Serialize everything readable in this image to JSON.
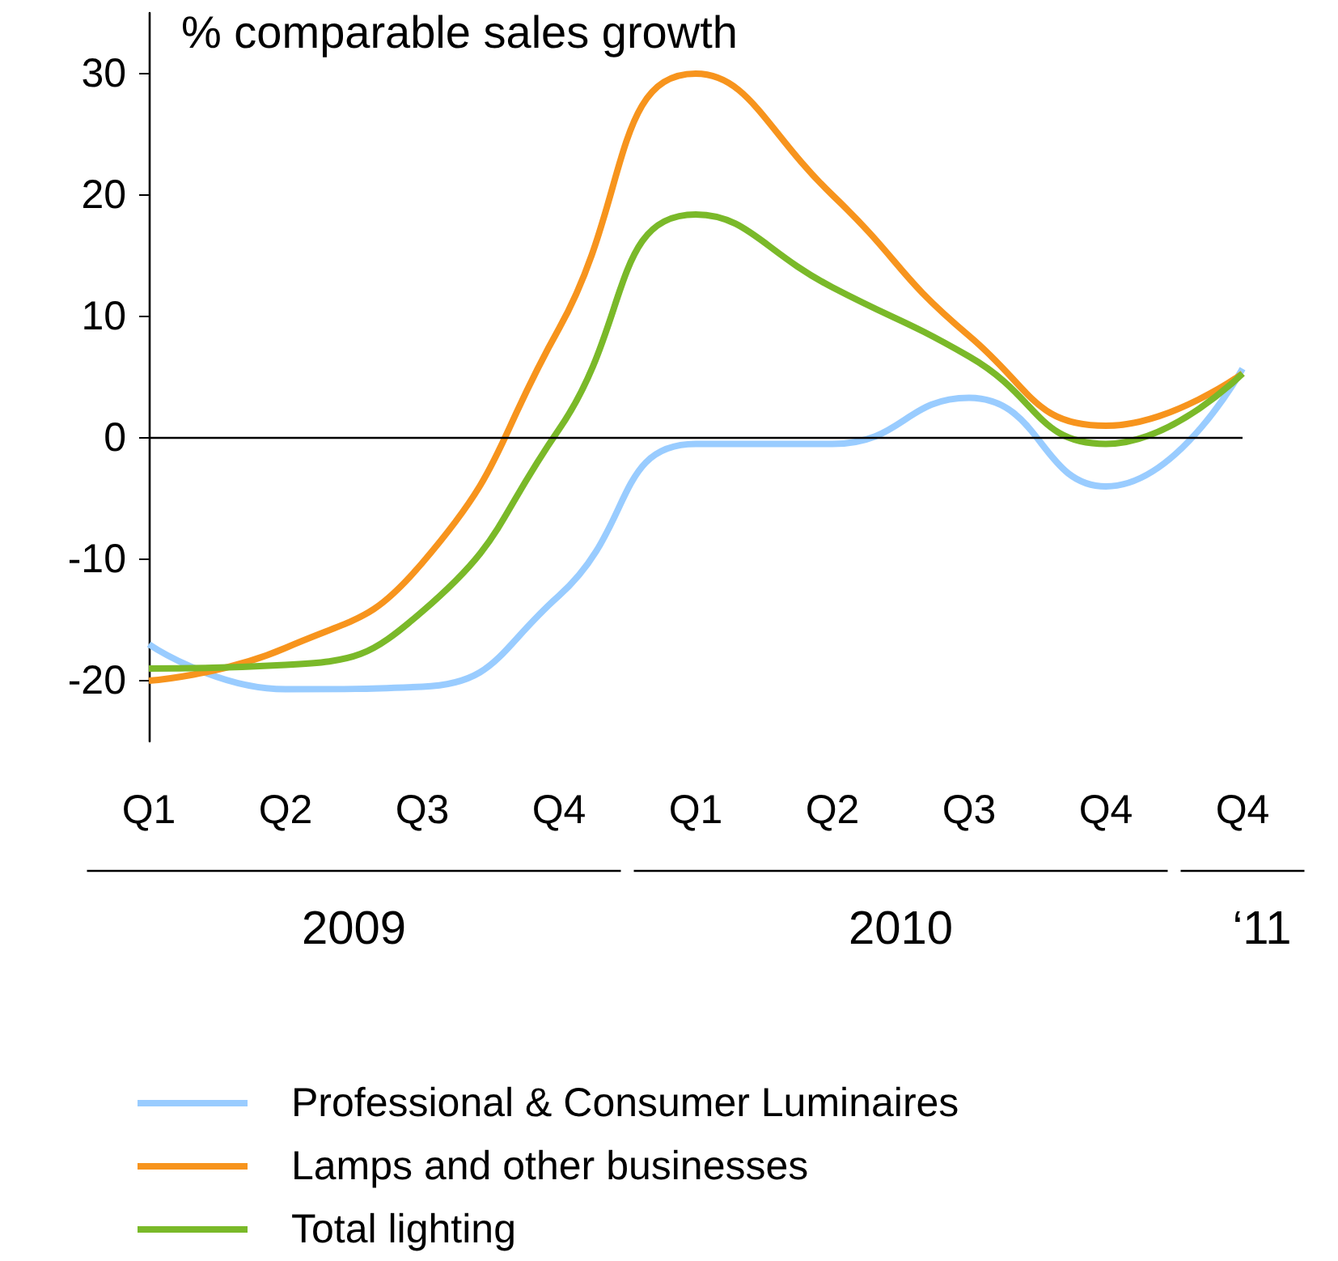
{
  "chart_data": {
    "type": "line",
    "ylabel": "% comparable sales growth",
    "categories": [
      "Q1",
      "Q2",
      "Q3",
      "Q4",
      "Q1",
      "Q2",
      "Q3",
      "Q4",
      "Q4"
    ],
    "series": [
      {
        "name": "Professional & Consumer Luminaires",
        "color": "#99ccff",
        "values": [
          -17,
          -20.7,
          -20.5,
          -13,
          -0.5,
          -0.5,
          3.3,
          -4,
          5.7
        ]
      },
      {
        "name": "Lamps and other businesses",
        "color": "#f7941d",
        "values": [
          -20,
          -17.3,
          -10.3,
          9,
          30,
          20,
          8.4,
          1,
          5.3
        ]
      },
      {
        "name": "Total lighting",
        "color": "#7ab929",
        "values": [
          -19,
          -18.7,
          -14.3,
          0.7,
          18.4,
          12.4,
          6.7,
          -0.5,
          5.3
        ]
      }
    ],
    "ylim": [
      -25,
      35
    ],
    "yticks": [
      -20,
      -10,
      0,
      10,
      20,
      30
    ],
    "ref_lines": [
      {
        "axis": "y",
        "value": 0,
        "color": "#000000"
      }
    ],
    "annotations": [
      "2009",
      "2010",
      "‘11"
    ],
    "grid": false,
    "legend": "bottom",
    "marker": "none",
    "line_style": "solid"
  }
}
